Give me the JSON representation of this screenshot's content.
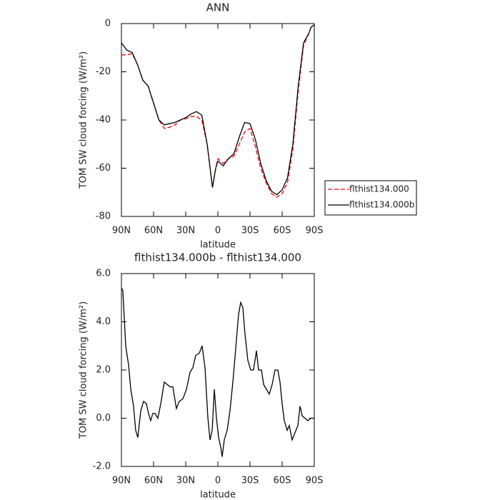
{
  "chart_data": [
    {
      "type": "line",
      "title": "ANN",
      "xlabel": "latitude",
      "ylabel": "TOM SW cloud forcing (W/m²)",
      "x": [
        90,
        85,
        80,
        75,
        70,
        65,
        60,
        55,
        50,
        45,
        40,
        35,
        30,
        25,
        20,
        15,
        10,
        5,
        2,
        0,
        -5,
        -10,
        -15,
        -20,
        -25,
        -30,
        -35,
        -40,
        -45,
        -50,
        -55,
        -60,
        -65,
        -70,
        -75,
        -80,
        -85,
        -87,
        -90
      ],
      "series": [
        {
          "name": "flthist134.000",
          "color": "#ff0000",
          "line_style": "dashed",
          "values": [
            -13,
            -13,
            -12.5,
            -17,
            -23.5,
            -26,
            -33,
            -40,
            -43.5,
            -43,
            -42,
            -40,
            -39.5,
            -38.5,
            -38.5,
            -40,
            -50,
            -68,
            -60,
            -56,
            -58,
            -56,
            -55,
            -50,
            -45,
            -43.5,
            -51,
            -60,
            -66,
            -70.5,
            -72,
            -70.5,
            -66,
            -52,
            -28,
            -9,
            -4,
            -1.5,
            -0.5
          ]
        },
        {
          "name": "flthist134.000b",
          "color": "#000000",
          "line_style": "solid",
          "values": [
            -8,
            -11,
            -12,
            -17,
            -23.5,
            -26,
            -33,
            -40,
            -42,
            -41.5,
            -41,
            -40,
            -39,
            -37.5,
            -36.5,
            -38,
            -50,
            -68,
            -60,
            -57,
            -59,
            -56,
            -54,
            -47,
            -41,
            -41.5,
            -48,
            -58,
            -65,
            -69.5,
            -71,
            -69,
            -64,
            -50,
            -26,
            -8,
            -4,
            -1.5,
            -0.5
          ]
        }
      ],
      "xlim": [
        90,
        -90
      ],
      "xticks": [
        {
          "value": 90,
          "label": "90N"
        },
        {
          "value": 60,
          "label": "60N"
        },
        {
          "value": 30,
          "label": "30N"
        },
        0,
        {
          "value": -30,
          "label": "30S"
        },
        {
          "value": -60,
          "label": "60S"
        },
        {
          "value": -90,
          "label": "90S"
        }
      ],
      "ylim": [
        -80,
        0
      ],
      "yticks": [
        0,
        -20,
        -40,
        -60,
        -80
      ],
      "legend": "right"
    },
    {
      "type": "line",
      "title": "flthist134.000b - flthist134.000",
      "xlabel": "latitude",
      "ylabel": "TOM SW cloud forcing (W/m²)",
      "x": [
        90,
        88.7,
        86,
        83.3,
        81.3,
        78.7,
        76.7,
        74.7,
        72,
        69.3,
        66.7,
        64.7,
        62.7,
        60.7,
        58.7,
        56,
        53.3,
        50,
        47.3,
        44.7,
        42,
        38.7,
        36,
        32.7,
        29.3,
        26,
        23.3,
        20.7,
        17.3,
        14.7,
        12,
        9.3,
        7.3,
        5.3,
        3.3,
        1.3,
        -0.7,
        -2.7,
        -4,
        -6,
        -8.7,
        -11.3,
        -14,
        -16.7,
        -19.3,
        -21.3,
        -23.3,
        -25.3,
        -28,
        -30.7,
        -33.3,
        -36,
        -38,
        -40.7,
        -42.7,
        -45.3,
        -48,
        -50.7,
        -53.3,
        -56,
        -58,
        -60,
        -62,
        -64.7,
        -66.7,
        -69.3,
        -72,
        -74.7,
        -76.7,
        -78.7,
        -81.3,
        -84,
        -86.7,
        -90
      ],
      "series": [
        {
          "color": "#000000",
          "line_style": "solid",
          "values": [
            5.4,
            5.3,
            3,
            2.2,
            1.2,
            0.5,
            -0.5,
            -0.8,
            0.3,
            0.7,
            0.6,
            0.2,
            -0.1,
            0.2,
            0.2,
            0,
            0.6,
            1.5,
            1.4,
            1.3,
            1.3,
            0.4,
            0.7,
            0.8,
            1.2,
            1.9,
            2.1,
            2.6,
            2.7,
            3,
            2.1,
            0,
            -0.9,
            -0.5,
            1.2,
            0,
            -0.8,
            -1.2,
            -1.6,
            -0.9,
            -0.5,
            0.3,
            1.5,
            2.9,
            4.3,
            4.8,
            4.6,
            3.5,
            2.4,
            2,
            2,
            2.8,
            2,
            2,
            1.4,
            1.2,
            1,
            1.4,
            2,
            2,
            1.5,
            0.6,
            -0.1,
            -0.5,
            -0.3,
            -0.9,
            -0.6,
            -0.3,
            0.5,
            0.1,
            0,
            -0.1,
            0,
            0
          ]
        }
      ],
      "xlim": [
        90,
        -90
      ],
      "xticks": [
        {
          "value": 90,
          "label": "90N"
        },
        {
          "value": 60,
          "label": "60N"
        },
        {
          "value": 30,
          "label": "30N"
        },
        0,
        {
          "value": -30,
          "label": "30S"
        },
        {
          "value": -60,
          "label": "60S"
        },
        {
          "value": -90,
          "label": "90S"
        }
      ],
      "ylim": [
        -2,
        6
      ],
      "yticks": [
        {
          "value": 6,
          "label": "6.0"
        },
        {
          "value": 4,
          "label": "4.0"
        },
        {
          "value": 2,
          "label": "2.0"
        },
        {
          "value": 0,
          "label": "0.0"
        },
        {
          "value": -2,
          "label": "-2.0"
        }
      ]
    }
  ]
}
